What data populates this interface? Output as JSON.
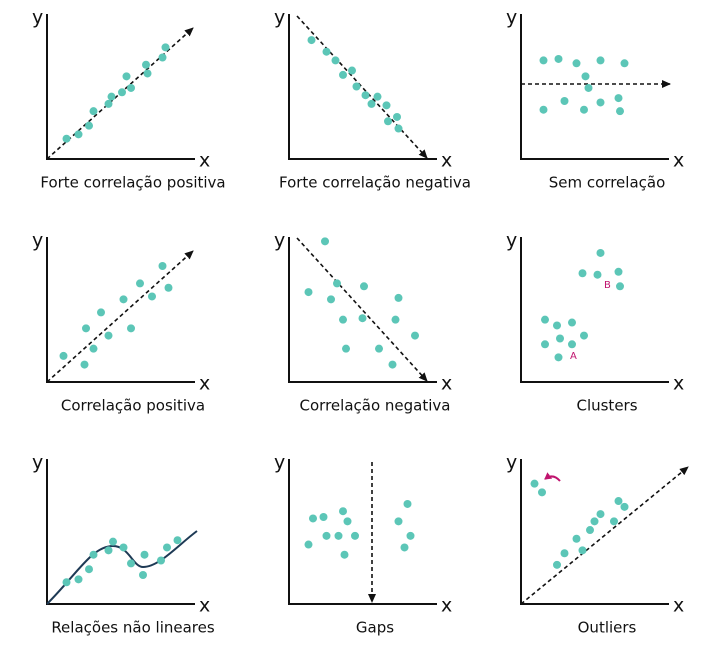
{
  "chart_data": [
    {
      "type": "scatter",
      "title": "Forte correlação positiva",
      "x_label": "x",
      "y_label": "y",
      "color": "#5cc6b7",
      "xlim": [
        0,
        10
      ],
      "ylim": [
        0,
        10
      ],
      "x": [
        1.3,
        2.1,
        2.8,
        3.1,
        4.1,
        4.3,
        5.0,
        5.3,
        5.6,
        6.6,
        6.7,
        7.7,
        7.9
      ],
      "y": [
        1.4,
        1.7,
        2.3,
        3.3,
        3.8,
        4.3,
        4.6,
        5.7,
        4.9,
        6.5,
        5.9,
        7.0,
        7.7
      ]
    },
    {
      "type": "scatter",
      "title": "Forte correlação negativa",
      "x_label": "x",
      "y_label": "y",
      "color": "#5cc6b7",
      "xlim": [
        0,
        10
      ],
      "ylim": [
        0,
        10
      ],
      "x": [
        1.5,
        2.5,
        3.1,
        3.6,
        4.2,
        4.5,
        5.1,
        5.5,
        5.9,
        6.5,
        6.6,
        7.2,
        7.3
      ],
      "y": [
        8.2,
        7.4,
        6.8,
        5.8,
        6.1,
        5.0,
        4.4,
        3.8,
        4.3,
        3.7,
        2.6,
        2.9,
        2.1
      ]
    },
    {
      "type": "scatter",
      "title": "Sem correlação",
      "x_label": "x",
      "y_label": "y",
      "color": "#5cc6b7",
      "xlim": [
        0,
        10
      ],
      "ylim": [
        0,
        10
      ],
      "x": [
        1.5,
        2.5,
        3.7,
        5.3,
        6.9,
        4.3,
        4.5,
        1.5,
        2.9,
        4.2,
        5.3,
        6.5,
        6.6
      ],
      "y": [
        6.8,
        6.9,
        6.6,
        6.8,
        6.6,
        5.7,
        4.9,
        3.4,
        4.0,
        3.4,
        3.9,
        4.2,
        3.3
      ]
    },
    {
      "type": "scatter",
      "title": "Correlação positiva",
      "x_label": "x",
      "y_label": "y",
      "color": "#5cc6b7",
      "xlim": [
        0,
        10
      ],
      "ylim": [
        0,
        10
      ],
      "x": [
        1.1,
        2.5,
        2.6,
        3.1,
        3.6,
        4.1,
        5.1,
        5.6,
        6.2,
        7.0,
        7.7,
        8.1
      ],
      "y": [
        1.8,
        1.2,
        3.7,
        2.3,
        4.8,
        3.2,
        5.7,
        3.7,
        6.8,
        5.9,
        8.0,
        6.5
      ]
    },
    {
      "type": "scatter",
      "title": "Correlação negativa",
      "x_label": "x",
      "y_label": "y",
      "color": "#5cc6b7",
      "xlim": [
        0,
        10
      ],
      "ylim": [
        0,
        10
      ],
      "x": [
        2.4,
        1.3,
        2.8,
        3.2,
        3.6,
        3.8,
        4.9,
        5.0,
        6.0,
        6.9,
        7.1,
        7.3,
        8.4
      ],
      "y": [
        9.7,
        6.2,
        5.7,
        6.8,
        4.3,
        2.3,
        4.4,
        6.6,
        2.3,
        1.2,
        4.3,
        5.8,
        3.2
      ]
    },
    {
      "type": "scatter",
      "title": "Clusters",
      "x_label": "x",
      "y_label": "y",
      "color": "#5cc6b7",
      "xlim": [
        0,
        10
      ],
      "ylim": [
        0,
        10
      ],
      "x": [
        1.6,
        2.4,
        3.4,
        1.6,
        2.6,
        3.4,
        4.2,
        2.5,
        5.3,
        4.1,
        5.1,
        6.5,
        6.6
      ],
      "y": [
        4.3,
        3.9,
        4.1,
        2.6,
        3.0,
        2.6,
        3.2,
        1.7,
        8.9,
        7.5,
        7.4,
        7.6,
        6.6
      ],
      "annotations": [
        "A",
        "B"
      ]
    },
    {
      "type": "scatter",
      "title": "Relações não lineares",
      "x_label": "x",
      "y_label": "y",
      "color": "#5cc6b7",
      "xlim": [
        0,
        10
      ],
      "ylim": [
        0,
        10
      ],
      "x": [
        1.3,
        2.1,
        2.8,
        3.1,
        4.1,
        4.4,
        5.1,
        5.6,
        6.4,
        6.5,
        7.6,
        8.0,
        8.7
      ],
      "y": [
        1.5,
        1.7,
        2.4,
        3.4,
        3.7,
        4.3,
        3.9,
        2.8,
        2.0,
        3.4,
        3.0,
        3.9,
        4.4
      ]
    },
    {
      "type": "scatter",
      "title": "Gaps",
      "x_label": "x",
      "y_label": "y",
      "color": "#5cc6b7",
      "xlim": [
        0,
        10
      ],
      "ylim": [
        0,
        10
      ],
      "x": [
        1.6,
        2.3,
        3.6,
        3.9,
        2.5,
        3.3,
        4.4,
        1.3,
        3.7,
        7.9,
        7.3,
        8.1,
        7.7
      ],
      "y": [
        5.9,
        6.0,
        6.4,
        5.7,
        4.7,
        4.7,
        4.7,
        4.1,
        3.4,
        6.9,
        5.7,
        4.7,
        3.9
      ]
    },
    {
      "type": "scatter",
      "title": "Outliers",
      "x_label": "x",
      "y_label": "y",
      "color": "#5cc6b7",
      "xlim": [
        0,
        10
      ],
      "ylim": [
        0,
        10
      ],
      "x": [
        0.9,
        1.4,
        2.4,
        2.9,
        3.7,
        4.1,
        4.6,
        4.9,
        5.3,
        6.2,
        6.5,
        6.9
      ],
      "y": [
        8.3,
        7.7,
        2.7,
        3.5,
        4.5,
        3.7,
        5.1,
        5.7,
        6.2,
        5.7,
        7.1,
        6.7
      ]
    }
  ]
}
